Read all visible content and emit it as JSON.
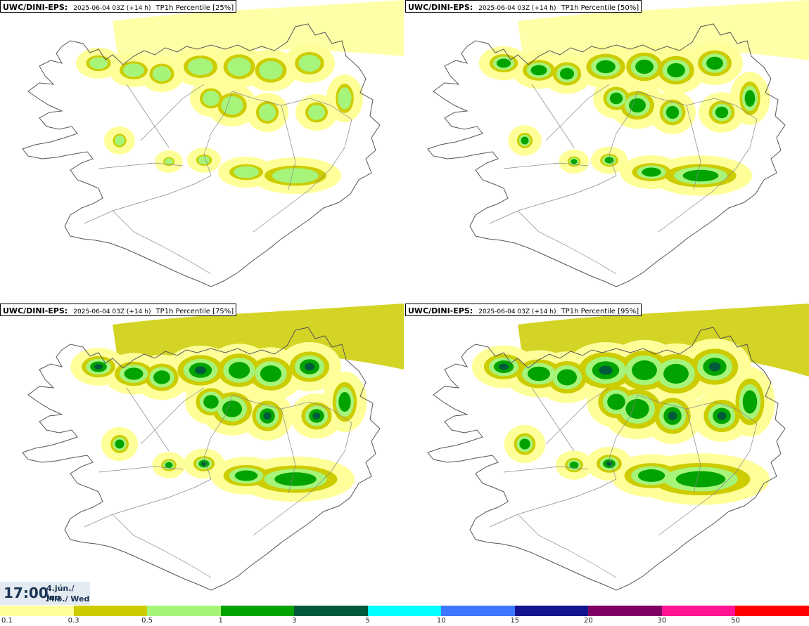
{
  "panels": [
    {
      "source": "UWC/DINI-EPS",
      "run": "2025-06-04 03Z (+14 h)",
      "title": "TP1h Percentile [25%]",
      "percentile": 25
    },
    {
      "source": "UWC/DINI-EPS",
      "run": "2025-06-04 03Z (+14 h)",
      "title": "TP1h Percentile [50%]",
      "percentile": 50
    },
    {
      "source": "UWC/DINI-EPS",
      "run": "2025-06-04 03Z (+14 h)",
      "title": "TP1h Percentile [75%]",
      "percentile": 75
    },
    {
      "source": "UWC/DINI-EPS",
      "run": "2025-06-04 03Z (+14 h)",
      "title": "TP1h Percentile [95%]",
      "percentile": 95
    }
  ],
  "valid_time": {
    "time": "17:00",
    "date_line1": "4.jún./ Jun",
    "date_line2": "Mið./ Wed"
  },
  "legend": {
    "colors": [
      "#ffff99",
      "#cccc00",
      "#a6f57a",
      "#00a300",
      "#005a3c",
      "#00ffff",
      "#3c78ff",
      "#141490",
      "#800064",
      "#ff1493",
      "#ff0000"
    ],
    "ticks": [
      "0.1",
      "0.3",
      "0.5",
      "1",
      "3",
      "5",
      "10",
      "15",
      "20",
      "30",
      "50"
    ]
  },
  "map_colors": {
    "coast": "#555555",
    "roads": "#888888",
    "c1": "#ffff99",
    "c2": "#cccc00",
    "c3": "#a6f57a",
    "c4": "#00a300",
    "c5": "#005a3c",
    "c6": "#00ffff"
  }
}
